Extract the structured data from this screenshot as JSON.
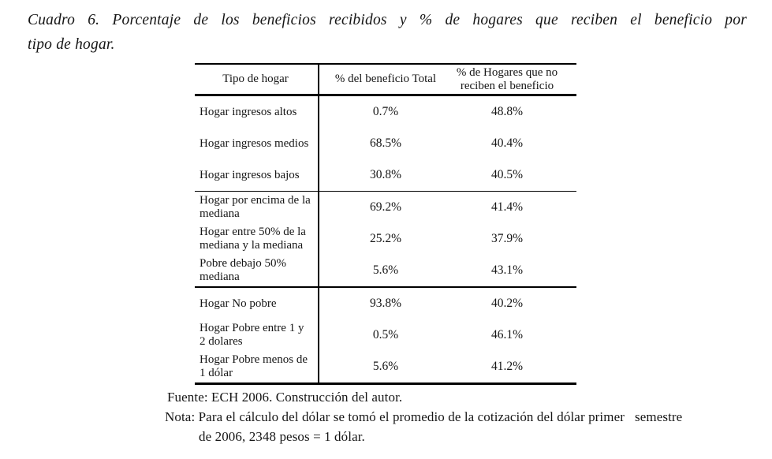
{
  "title": {
    "line1": "Cuadro 6. Porcentaje de los beneficios recibidos y % de hogares que reciben el beneficio por",
    "line2": "tipo de hogar."
  },
  "table": {
    "columns": [
      "Tipo de hogar",
      "% del beneficio Total",
      "% de Hogares que no reciben el beneficio"
    ],
    "groups": [
      {
        "rows": [
          {
            "label": "Hogar ingresos altos",
            "beneficio": "0.7%",
            "hogares": "48.8%"
          },
          {
            "label": "Hogar ingresos medios",
            "beneficio": "68.5%",
            "hogares": "40.4%"
          },
          {
            "label": "Hogar ingresos bajos",
            "beneficio": "30.8%",
            "hogares": "40.5%"
          }
        ]
      },
      {
        "rows": [
          {
            "label": "Hogar por encima de la mediana",
            "beneficio": "69.2%",
            "hogares": "41.4%"
          },
          {
            "label": "Hogar entre 50% de la mediana y la mediana",
            "beneficio": "25.2%",
            "hogares": "37.9%"
          },
          {
            "label": "Pobre debajo 50% mediana",
            "beneficio": "5.6%",
            "hogares": "43.1%"
          }
        ]
      },
      {
        "rows": [
          {
            "label": "Hogar No pobre",
            "beneficio": "93.8%",
            "hogares": "40.2%"
          },
          {
            "label": "Hogar Pobre entre 1 y 2 dolares",
            "beneficio": "0.5%",
            "hogares": "46.1%"
          },
          {
            "label": "Hogar Pobre menos de 1 dólar",
            "beneficio": "5.6%",
            "hogares": "41.2%"
          }
        ]
      }
    ]
  },
  "notes": {
    "fuente": "Fuente: ECH 2006. Construcción del autor.",
    "nota_line1": "Nota: Para el cálculo del dólar se tomó el promedio de la cotización del dólar primer   semestre",
    "nota_line2": "de 2006, 2348 pesos = 1 dólar."
  },
  "colors": {
    "background": "#ffffff",
    "text": "#161616",
    "border": "#000000"
  }
}
